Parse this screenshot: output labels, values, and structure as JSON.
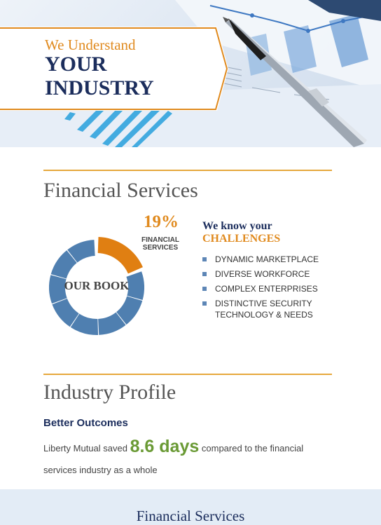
{
  "hero": {
    "kicker": "We Understand",
    "headline": "YOUR INDUSTRY"
  },
  "financial_services": {
    "title": "Financial Services",
    "book": {
      "label": "OUR BOOK",
      "share_percent": 19,
      "share_text": "19%",
      "share_label": "FINANCIAL SERVICES",
      "highlight_color": "#e07f12",
      "base_color": "#4f7fb0"
    },
    "challenges": {
      "title_line1": "We know your",
      "title_line2": "CHALLENGES",
      "items": [
        "DYNAMIC MARKETPLACE",
        "DIVERSE WORKFORCE",
        "COMPLEX ENTERPRISES",
        "DISTINCTIVE SECURITY TECHNOLOGY & NEEDS"
      ]
    }
  },
  "industry_profile": {
    "title": "Industry Profile",
    "subtitle": "Better Outcomes",
    "text_before": "Liberty Mutual saved",
    "highlight": "8.6 days",
    "text_after": "compared to the financial",
    "text_line2": "services industry as a whole"
  },
  "footer_band": {
    "title": "Financial Services"
  },
  "colors": {
    "accent_orange": "#e08a1e",
    "navy": "#1b2d5c",
    "green": "#6a9a35",
    "rule": "#e6a83c"
  }
}
